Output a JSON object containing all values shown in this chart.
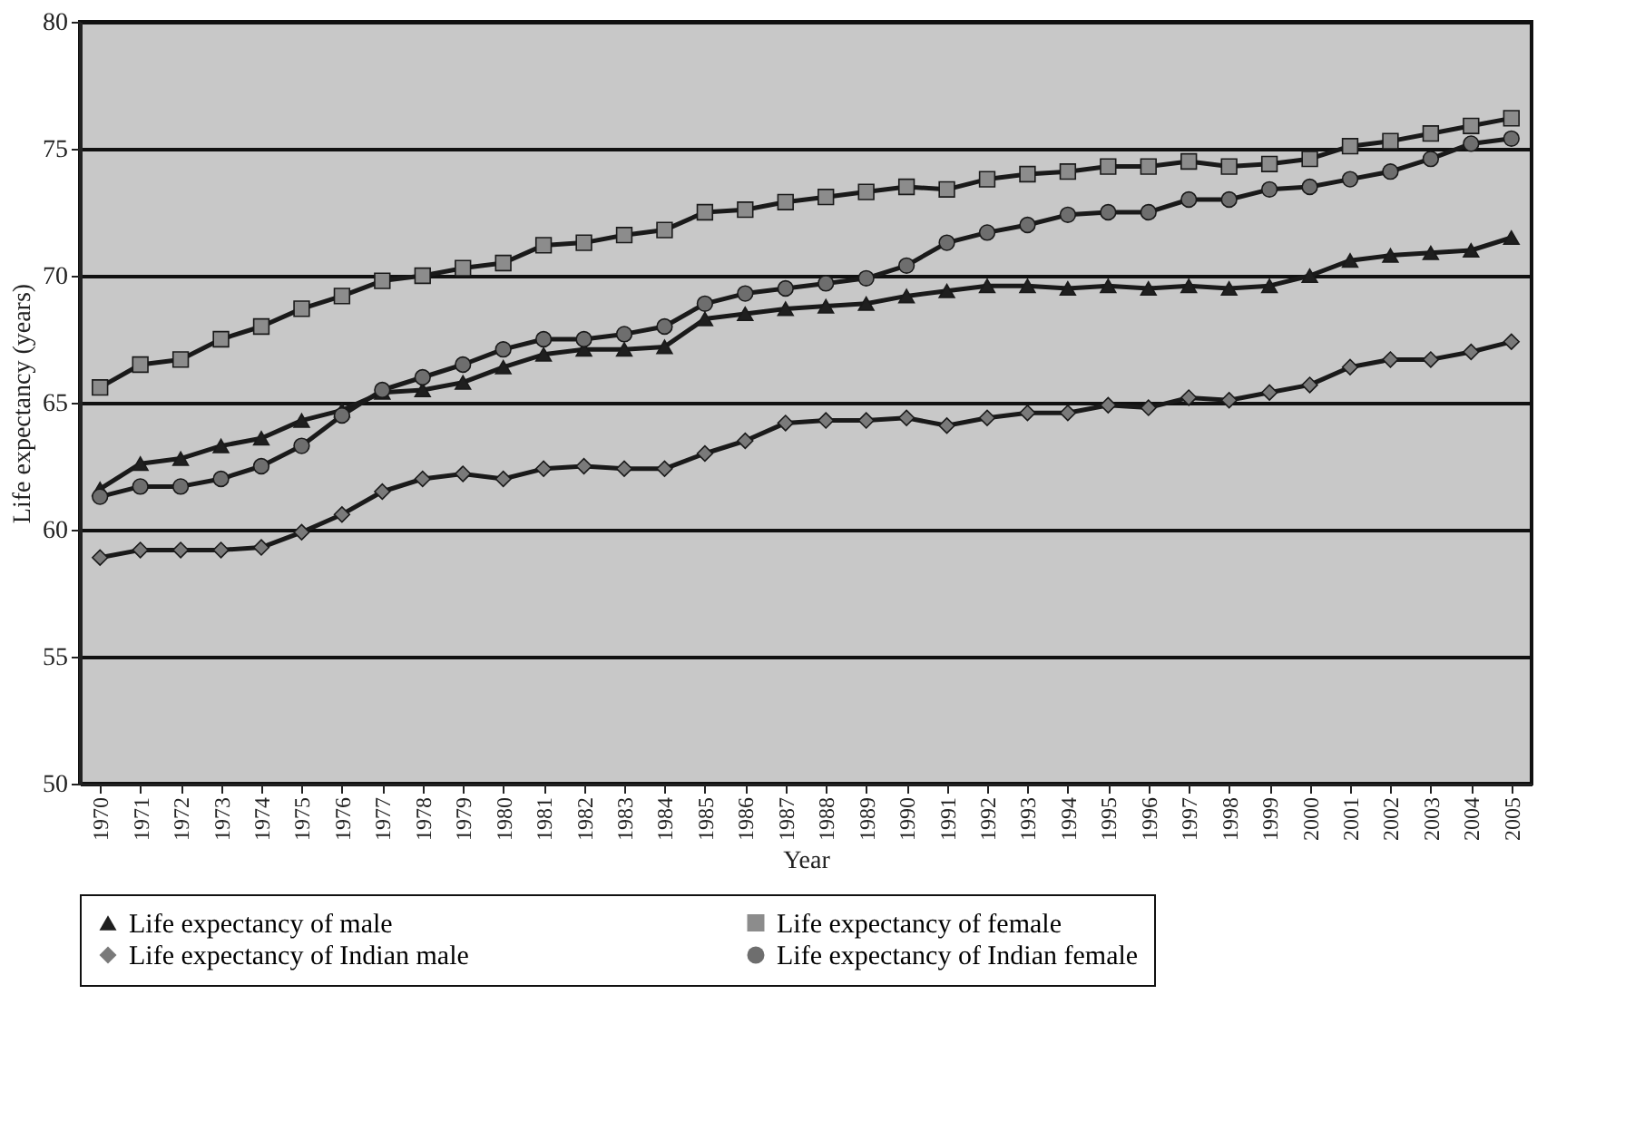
{
  "chart_data": {
    "type": "line",
    "xlabel": "Year",
    "ylabel": "Life expectancy (years)",
    "categories": [
      "1970",
      "1971",
      "1972",
      "1973",
      "1974",
      "1975",
      "1976",
      "1977",
      "1978",
      "1979",
      "1980",
      "1981",
      "1982",
      "1983",
      "1984",
      "1985",
      "1986",
      "1987",
      "1988",
      "1989",
      "1990",
      "1991",
      "1992",
      "1993",
      "1994",
      "1995",
      "1996",
      "1997",
      "1998",
      "1999",
      "2000",
      "2001",
      "2002",
      "2003",
      "2004",
      "2005"
    ],
    "ylim": [
      50,
      80
    ],
    "yticks": [
      50,
      55,
      60,
      65,
      70,
      75,
      80
    ],
    "grid": "y",
    "legend": "bottom",
    "series": [
      {
        "name": "Life expectancy  of male",
        "color": "#1f1f1f",
        "marker": "triangle",
        "values": [
          61.6,
          62.6,
          62.8,
          63.3,
          63.6,
          64.3,
          64.7,
          65.4,
          65.5,
          65.8,
          66.4,
          66.9,
          67.1,
          67.1,
          67.2,
          68.3,
          68.5,
          68.7,
          68.8,
          68.9,
          69.2,
          69.4,
          69.6,
          69.6,
          69.5,
          69.6,
          69.5,
          69.6,
          69.5,
          69.6,
          70.0,
          70.6,
          70.8,
          70.9,
          71.0,
          71.5
        ]
      },
      {
        "name": "Life expectancy  of female",
        "color": "#8c8c8c",
        "marker": "square",
        "values": [
          65.6,
          66.5,
          66.7,
          67.5,
          68.0,
          68.7,
          69.2,
          69.8,
          70.0,
          70.3,
          70.5,
          71.2,
          71.3,
          71.6,
          71.8,
          72.5,
          72.6,
          72.9,
          73.1,
          73.3,
          73.5,
          73.4,
          73.8,
          74.0,
          74.1,
          74.3,
          74.3,
          74.5,
          74.3,
          74.4,
          74.6,
          75.1,
          75.3,
          75.6,
          75.9,
          76.2
        ]
      },
      {
        "name": "Life expectancy of Indian male",
        "color": "#7a7a7a",
        "marker": "diamond",
        "values": [
          58.9,
          59.2,
          59.2,
          59.2,
          59.3,
          59.9,
          60.6,
          61.5,
          62.0,
          62.2,
          62.0,
          62.4,
          62.5,
          62.4,
          62.4,
          63.0,
          63.5,
          64.2,
          64.3,
          64.3,
          64.4,
          64.1,
          64.4,
          64.6,
          64.6,
          64.9,
          64.8,
          65.2,
          65.1,
          65.4,
          65.7,
          66.4,
          66.7,
          66.7,
          67.0,
          67.4
        ]
      },
      {
        "name": "Life expectancy of Indian female",
        "color": "#6e6e6e",
        "marker": "circle",
        "values": [
          61.3,
          61.7,
          61.7,
          62.0,
          62.5,
          63.3,
          64.5,
          65.5,
          66.0,
          66.5,
          67.1,
          67.5,
          67.5,
          67.7,
          68.0,
          68.9,
          69.3,
          69.5,
          69.7,
          69.9,
          70.4,
          71.3,
          71.7,
          72.0,
          72.4,
          72.5,
          72.5,
          73.0,
          73.0,
          73.4,
          73.5,
          73.8,
          74.1,
          74.6,
          75.2,
          75.4
        ]
      }
    ]
  }
}
